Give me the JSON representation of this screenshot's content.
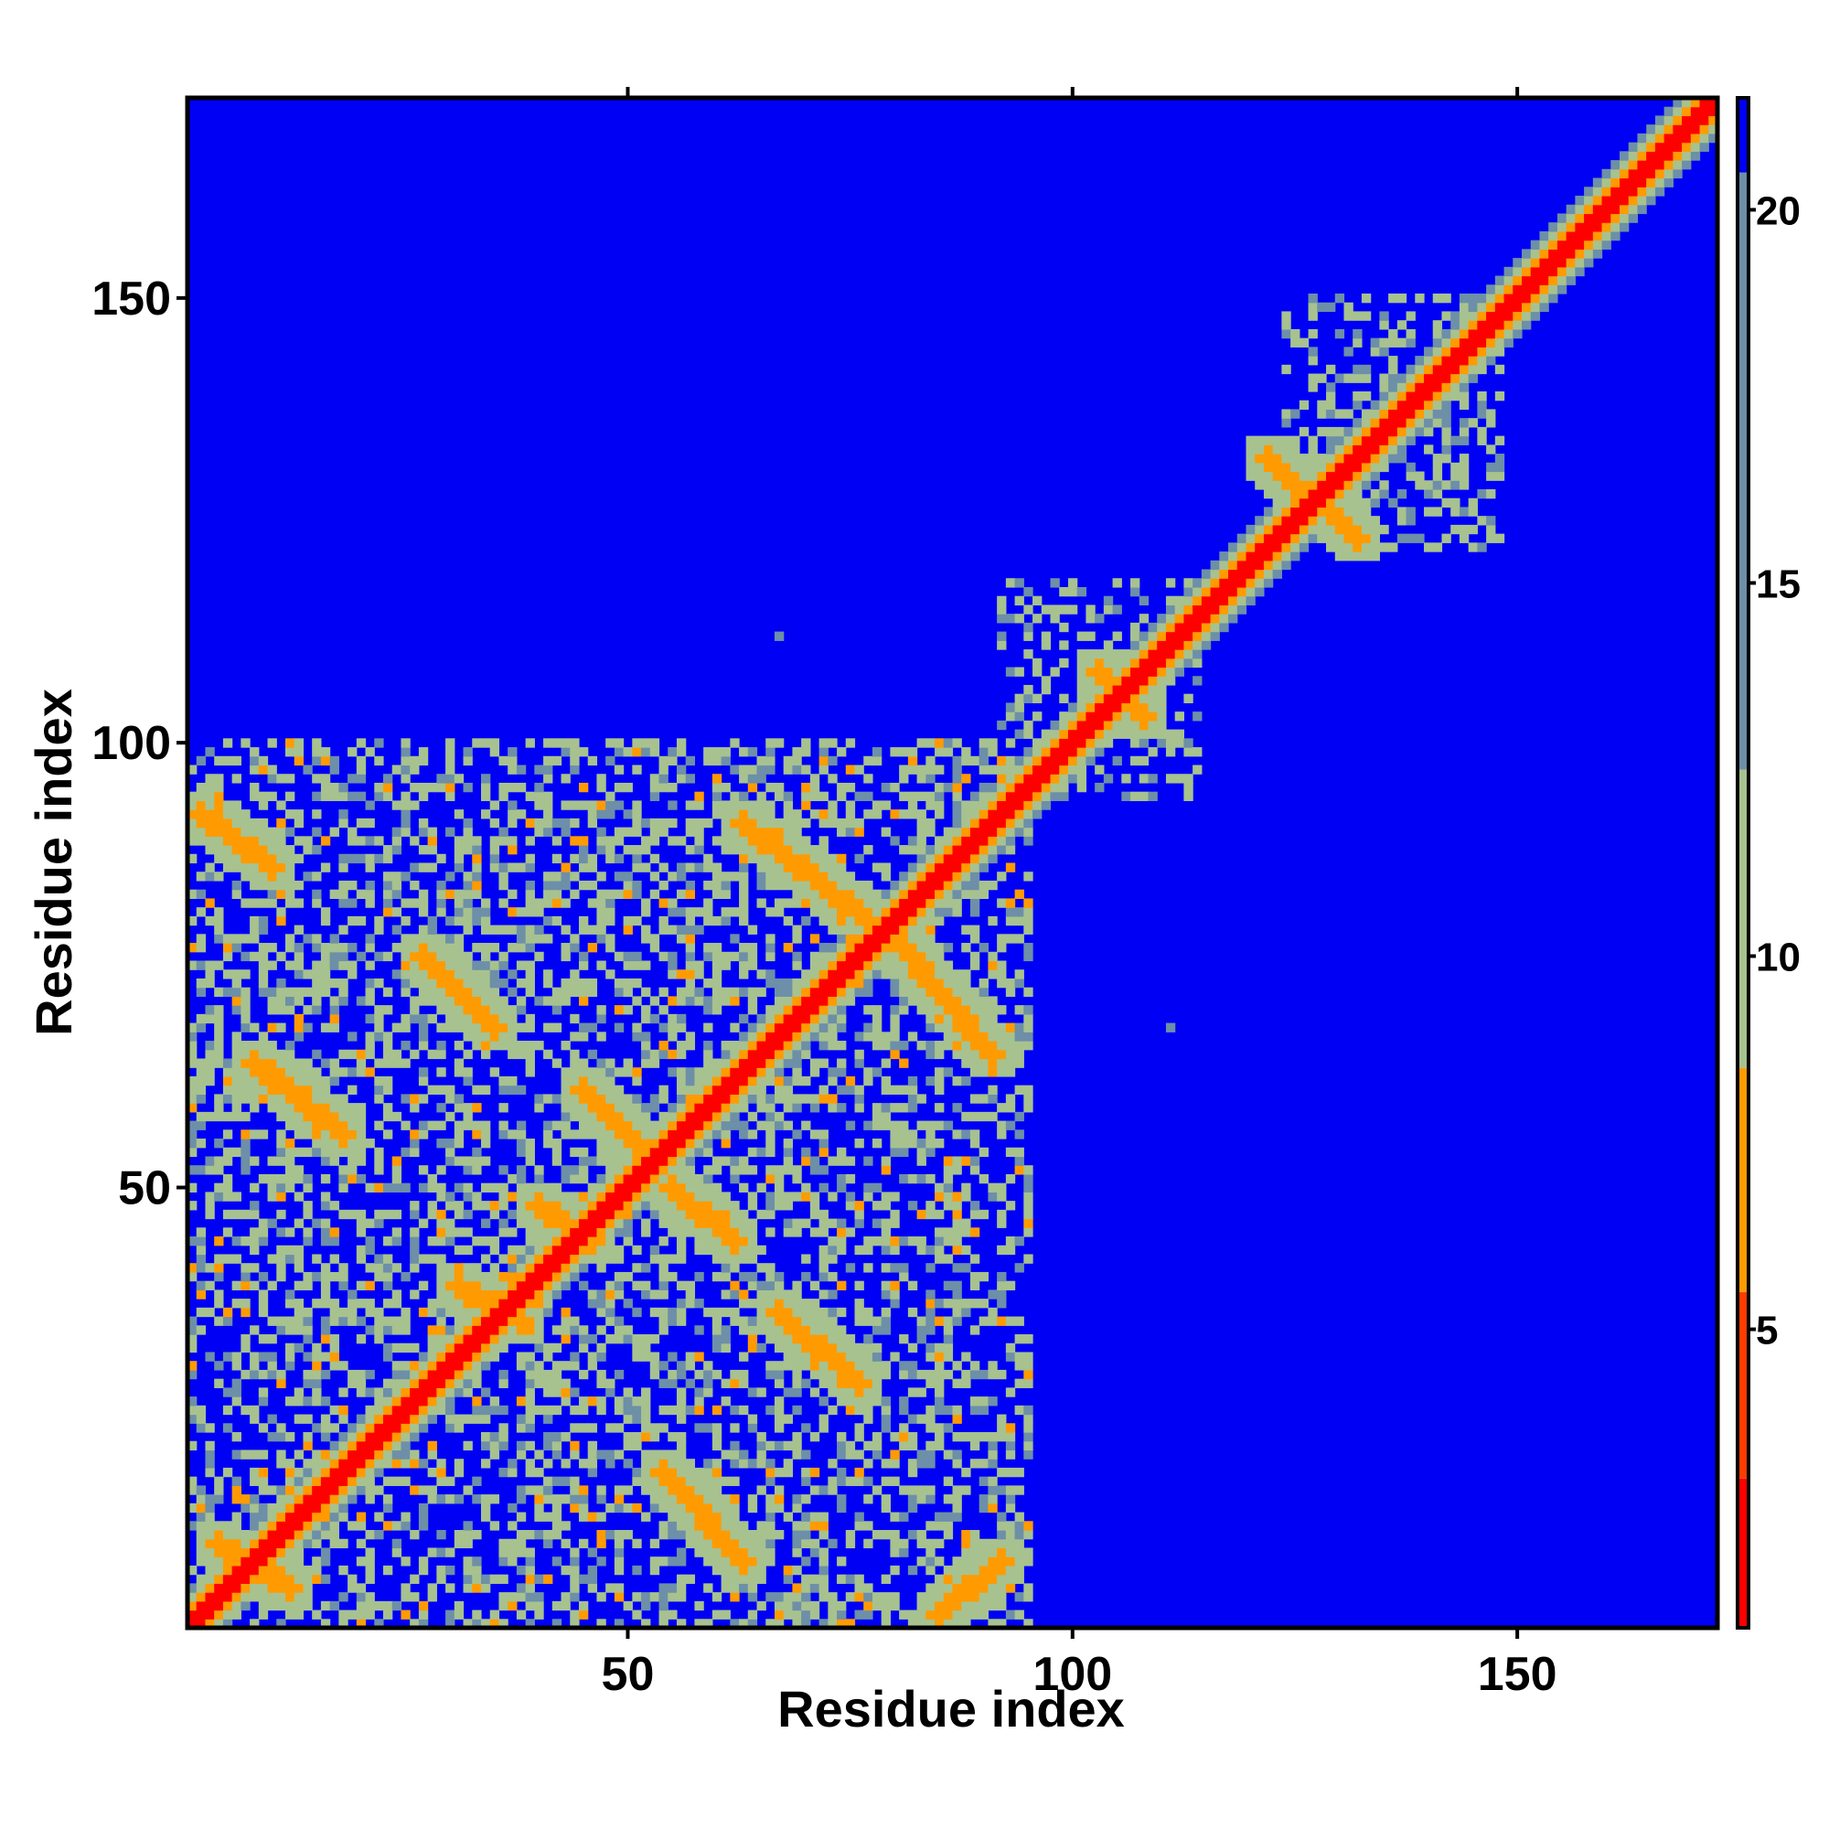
{
  "chart_data": {
    "type": "heatmap",
    "title": "",
    "xlabel": "Residue index",
    "ylabel": "Residue index",
    "xlim": [
      1,
      172
    ],
    "ylim": [
      1,
      172
    ],
    "x_ticks": [
      50,
      100,
      150
    ],
    "y_ticks": [
      50,
      100,
      150
    ],
    "colorbar": {
      "range": [
        1,
        21.5
      ],
      "ticks": [
        5,
        10,
        15,
        20
      ],
      "bands": [
        {
          "from": 1,
          "to": 3,
          "color": "#ff0000"
        },
        {
          "from": 3,
          "to": 5.5,
          "color": "#ff3c00"
        },
        {
          "from": 5.5,
          "to": 8.5,
          "color": "#ff9b00"
        },
        {
          "from": 8.5,
          "to": 12.5,
          "color": "#a7c28f"
        },
        {
          "from": 12.5,
          "to": 20.5,
          "color": "#6d8fa8"
        },
        {
          "from": 20.5,
          "to": 21.5,
          "color": "#0000f5"
        }
      ]
    },
    "background_value": 21.5,
    "diagonal_value": 2,
    "contact_bands": [
      {
        "x": [
          2,
          10
        ],
        "y": [
          92,
          86
        ],
        "value": 7
      },
      {
        "x": [
          27,
          35
        ],
        "y": [
          76,
          68
        ],
        "value": 7
      },
      {
        "x": [
          8,
          18
        ],
        "y": [
          64,
          56
        ],
        "value": 7
      },
      {
        "x": [
          45,
          52
        ],
        "y": [
          61,
          54
        ],
        "value": 7
      },
      {
        "x": [
          55,
          62
        ],
        "y": [
          50,
          44
        ],
        "value": 7
      },
      {
        "x": [
          67,
          76
        ],
        "y": [
          36,
          28
        ],
        "value": 7
      },
      {
        "x": [
          54,
          63
        ],
        "y": [
          18,
          8
        ],
        "value": 7
      },
      {
        "x": [
          85,
          92
        ],
        "y": [
          2,
          8
        ],
        "value": 7
      },
      {
        "x": [
          63,
          77
        ],
        "y": [
          91,
          80
        ],
        "value": 7
      },
      {
        "x": [
          80,
          91
        ],
        "y": [
          78,
          65
        ],
        "value": 7
      },
      {
        "x": [
          4,
          12
        ],
        "y": [
          10,
          5
        ],
        "value": 7
      },
      {
        "x": [
          31,
          38
        ],
        "y": [
          39,
          35
        ],
        "value": 7
      },
      {
        "x": [
          40,
          46
        ],
        "y": [
          48,
          44
        ],
        "value": 7
      },
      {
        "x": [
          103,
          108
        ],
        "y": [
          108,
          103
        ],
        "value": 7
      },
      {
        "x": [
          122,
          132
        ],
        "y": [
          132,
          123
        ],
        "value": 7
      }
    ],
    "scatter_region": {
      "x": [
        1,
        95
      ],
      "y": [
        1,
        100
      ]
    },
    "upper_patches": [
      {
        "x": [
          92,
          114
        ],
        "y": [
          94,
          118
        ]
      },
      {
        "x": [
          124,
          148
        ],
        "y": [
          122,
          150
        ]
      }
    ],
    "isolated_points": [
      {
        "x": 67,
        "y": 112,
        "value": 15
      },
      {
        "x": 111,
        "y": 68,
        "value": 15
      }
    ]
  }
}
